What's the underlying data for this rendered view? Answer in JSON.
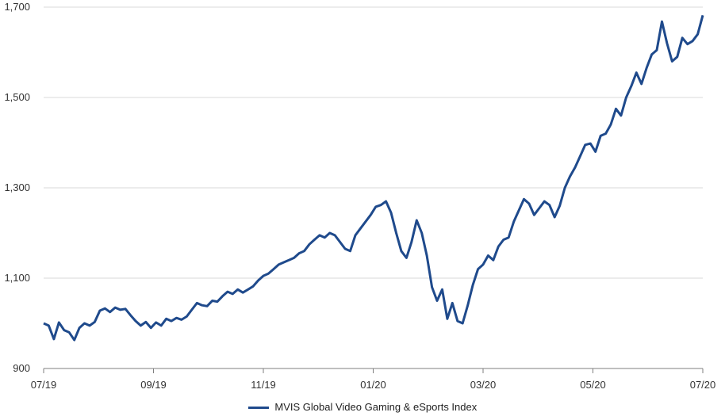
{
  "chart_data": {
    "type": "line",
    "title": "",
    "xlabel": "",
    "ylabel": "",
    "ylim": [
      900,
      1700
    ],
    "yticks": [
      "900",
      "1,100",
      "1,300",
      "1,500",
      "1,700"
    ],
    "ytick_values": [
      900,
      1100,
      1300,
      1500,
      1700
    ],
    "xticks": [
      "07/19",
      "09/19",
      "11/19",
      "01/20",
      "03/20",
      "05/20",
      "07/20"
    ],
    "grid": "horizontal",
    "legend_position": "bottom-center",
    "colors": {
      "series": "#1f4a8c",
      "grid": "#d9d9d9",
      "axis": "#7f7f7f"
    },
    "series": [
      {
        "name": "MVIS Global Video Gaming & eSports Index",
        "points": [
          [
            "07/19",
            1000
          ],
          [
            "07/19",
            995
          ],
          [
            "07/19",
            965
          ],
          [
            "07/19",
            1002
          ],
          [
            "07/19",
            985
          ],
          [
            "07/19",
            980
          ],
          [
            "07/19",
            963
          ],
          [
            "07/19",
            990
          ],
          [
            "07/19",
            1000
          ],
          [
            "07/19",
            995
          ],
          [
            "08/19",
            1003
          ],
          [
            "08/19",
            1028
          ],
          [
            "08/19",
            1033
          ],
          [
            "08/19",
            1025
          ],
          [
            "08/19",
            1035
          ],
          [
            "08/19",
            1030
          ],
          [
            "08/19",
            1032
          ],
          [
            "08/19",
            1018
          ],
          [
            "08/19",
            1005
          ],
          [
            "08/19",
            995
          ],
          [
            "09/19",
            1003
          ],
          [
            "09/19",
            990
          ],
          [
            "09/19",
            1002
          ],
          [
            "09/19",
            995
          ],
          [
            "09/19",
            1010
          ],
          [
            "09/19",
            1005
          ],
          [
            "09/19",
            1012
          ],
          [
            "09/19",
            1008
          ],
          [
            "09/19",
            1015
          ],
          [
            "09/19",
            1030
          ],
          [
            "10/19",
            1045
          ],
          [
            "10/19",
            1040
          ],
          [
            "10/19",
            1038
          ],
          [
            "10/19",
            1050
          ],
          [
            "10/19",
            1048
          ],
          [
            "10/19",
            1060
          ],
          [
            "10/19",
            1070
          ],
          [
            "10/19",
            1065
          ],
          [
            "10/19",
            1075
          ],
          [
            "10/19",
            1068
          ],
          [
            "11/19",
            1075
          ],
          [
            "11/19",
            1082
          ],
          [
            "11/19",
            1095
          ],
          [
            "11/19",
            1105
          ],
          [
            "11/19",
            1110
          ],
          [
            "11/19",
            1120
          ],
          [
            "11/19",
            1130
          ],
          [
            "11/19",
            1135
          ],
          [
            "11/19",
            1140
          ],
          [
            "11/19",
            1145
          ],
          [
            "12/19",
            1155
          ],
          [
            "12/19",
            1160
          ],
          [
            "12/19",
            1175
          ],
          [
            "12/19",
            1185
          ],
          [
            "12/19",
            1195
          ],
          [
            "12/19",
            1190
          ],
          [
            "12/19",
            1200
          ],
          [
            "12/19",
            1195
          ],
          [
            "12/19",
            1180
          ],
          [
            "12/19",
            1165
          ],
          [
            "01/20",
            1160
          ],
          [
            "01/20",
            1195
          ],
          [
            "01/20",
            1210
          ],
          [
            "01/20",
            1225
          ],
          [
            "01/20",
            1240
          ],
          [
            "01/20",
            1258
          ],
          [
            "01/20",
            1262
          ],
          [
            "01/20",
            1270
          ],
          [
            "01/20",
            1245
          ],
          [
            "01/20",
            1200
          ],
          [
            "02/20",
            1160
          ],
          [
            "02/20",
            1145
          ],
          [
            "02/20",
            1180
          ],
          [
            "02/20",
            1228
          ],
          [
            "02/20",
            1200
          ],
          [
            "02/20",
            1150
          ],
          [
            "02/20",
            1080
          ],
          [
            "02/20",
            1050
          ],
          [
            "02/20",
            1075
          ],
          [
            "02/20",
            1010
          ],
          [
            "03/20",
            1045
          ],
          [
            "03/20",
            1005
          ],
          [
            "03/20",
            1000
          ],
          [
            "03/20",
            1040
          ],
          [
            "03/20",
            1085
          ],
          [
            "03/20",
            1120
          ],
          [
            "03/20",
            1130
          ],
          [
            "03/20",
            1150
          ],
          [
            "03/20",
            1140
          ],
          [
            "03/20",
            1170
          ],
          [
            "04/20",
            1185
          ],
          [
            "04/20",
            1190
          ],
          [
            "04/20",
            1225
          ],
          [
            "04/20",
            1250
          ],
          [
            "04/20",
            1275
          ],
          [
            "04/20",
            1265
          ],
          [
            "04/20",
            1240
          ],
          [
            "04/20",
            1255
          ],
          [
            "04/20",
            1270
          ],
          [
            "04/20",
            1262
          ],
          [
            "05/20",
            1235
          ],
          [
            "05/20",
            1260
          ],
          [
            "05/20",
            1300
          ],
          [
            "05/20",
            1325
          ],
          [
            "05/20",
            1345
          ],
          [
            "05/20",
            1370
          ],
          [
            "05/20",
            1395
          ],
          [
            "05/20",
            1398
          ],
          [
            "05/20",
            1380
          ],
          [
            "05/20",
            1415
          ],
          [
            "06/20",
            1420
          ],
          [
            "06/20",
            1440
          ],
          [
            "06/20",
            1475
          ],
          [
            "06/20",
            1460
          ],
          [
            "06/20",
            1500
          ],
          [
            "06/20",
            1525
          ],
          [
            "06/20",
            1555
          ],
          [
            "06/20",
            1530
          ],
          [
            "06/20",
            1565
          ],
          [
            "06/20",
            1595
          ],
          [
            "07/20",
            1605
          ],
          [
            "07/20",
            1668
          ],
          [
            "07/20",
            1620
          ],
          [
            "07/20",
            1580
          ],
          [
            "07/20",
            1590
          ],
          [
            "07/20",
            1632
          ],
          [
            "07/20",
            1618
          ],
          [
            "07/20",
            1625
          ],
          [
            "07/20",
            1640
          ],
          [
            "07/20",
            1682
          ]
        ]
      }
    ]
  },
  "legend": {
    "label": "MVIS Global Video Gaming & eSports Index"
  }
}
